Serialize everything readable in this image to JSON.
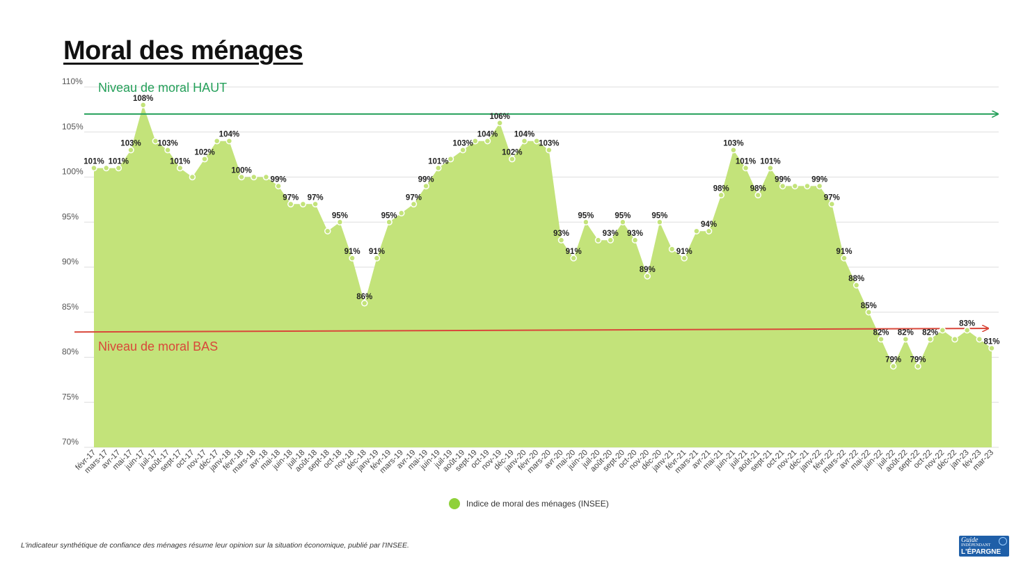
{
  "title": "Moral des ménages",
  "legend_label": "Indice de moral des ménages (INSEE)",
  "footnote": "L'indicateur synthétique de confiance des ménages résume leur opinion sur la situation économique, publié par l'INSEE.",
  "logo": {
    "line1": "Guide",
    "line2": "INDÉPENDANT",
    "line3": "L'ÉPARGNE",
    "icon": "piggy-bank-icon"
  },
  "colors": {
    "area": "#c3e37a",
    "legend": "#8fd13a",
    "high": "#25a05a",
    "low": "#d9473a",
    "grid": "#dddddd"
  },
  "chart_data": {
    "type": "area",
    "y_tick_labels": [
      "70%",
      "75%",
      "80%",
      "85%",
      "90%",
      "95%",
      "100%",
      "105%",
      "110%"
    ],
    "ylim": [
      70,
      110
    ],
    "grid": true,
    "legend_position": "bottom-center",
    "categories": [
      "févr-17",
      "mars-17",
      "avr-17",
      "mai-17",
      "juin-17",
      "juil-17",
      "août-17",
      "sept-17",
      "oct-17",
      "nov-17",
      "déc-17",
      "janv-18",
      "févr-18",
      "mars-18",
      "avr-18",
      "mai-18",
      "juin-18",
      "juil-18",
      "août-18",
      "sept-18",
      "oct-18",
      "nov-18",
      "déc-18",
      "janv-19",
      "févr-19",
      "mars-19",
      "avr-19",
      "mai-19",
      "juin-19",
      "juil-19",
      "août-19",
      "sept-19",
      "oct-19",
      "nov-19",
      "déc-19",
      "janv-20",
      "févr-20",
      "mars-20",
      "avr-20",
      "mai-20",
      "juin-20",
      "juil-20",
      "août-20",
      "sept-20",
      "oct-20",
      "nov-20",
      "déc-20",
      "janv-21",
      "févr-21",
      "mars-21",
      "avr-21",
      "mai-21",
      "juin-21",
      "juil-21",
      "août-21",
      "sept-21",
      "oct-21",
      "nov-21",
      "déc-21",
      "janv-22",
      "févr-22",
      "mars-22",
      "avr-22",
      "mai-22",
      "juin-22",
      "juil-22",
      "août-22",
      "sept-22",
      "oct-22",
      "nov-22",
      "déc-22",
      "jan-23",
      "fév-23",
      "mar-23"
    ],
    "series": [
      {
        "name": "Indice de moral des ménages (INSEE)",
        "values": [
          101,
          101,
          101,
          103,
          108,
          104,
          103,
          101,
          100,
          102,
          104,
          104,
          100,
          100,
          100,
          99,
          97,
          97,
          97,
          94,
          95,
          91,
          86,
          91,
          95,
          96,
          97,
          99,
          101,
          102,
          103,
          104,
          104,
          106,
          102,
          104,
          104,
          103,
          93,
          91,
          95,
          93,
          93,
          95,
          93,
          89,
          95,
          92,
          91,
          94,
          94,
          98,
          103,
          101,
          98,
          101,
          99,
          99,
          99,
          99,
          97,
          91,
          88,
          85,
          82,
          79,
          82,
          79,
          82,
          83,
          82,
          83,
          82,
          81
        ],
        "data_labels": [
          "101%",
          "",
          "101%",
          "103%",
          "108%",
          "",
          "103%",
          "101%",
          "",
          "102%",
          "",
          "104%",
          "100%",
          "",
          "",
          "99%",
          "97%",
          "",
          "97%",
          "",
          "95%",
          "91%",
          "86%",
          "91%",
          "95%",
          "",
          "97%",
          "99%",
          "101%",
          "",
          "103%",
          "",
          "104%",
          "106%",
          "102%",
          "104%",
          "",
          "103%",
          "93%",
          "91%",
          "95%",
          "",
          "93%",
          "95%",
          "93%",
          "89%",
          "95%",
          "",
          "91%",
          "",
          "94%",
          "98%",
          "103%",
          "101%",
          "98%",
          "101%",
          "99%",
          "",
          "",
          "99%",
          "97%",
          "91%",
          "88%",
          "85%",
          "82%",
          "79%",
          "82%",
          "79%",
          "82%",
          "",
          "",
          "83%",
          "",
          "81%"
        ]
      }
    ],
    "reference_lines": [
      {
        "label": "Niveau de moral HAUT",
        "color": "#25a05a",
        "y_start": 107,
        "y_end": 107
      },
      {
        "label": "Niveau de moral BAS",
        "color": "#d9473a",
        "y_start": 82.8,
        "y_end": 83.2
      }
    ]
  }
}
